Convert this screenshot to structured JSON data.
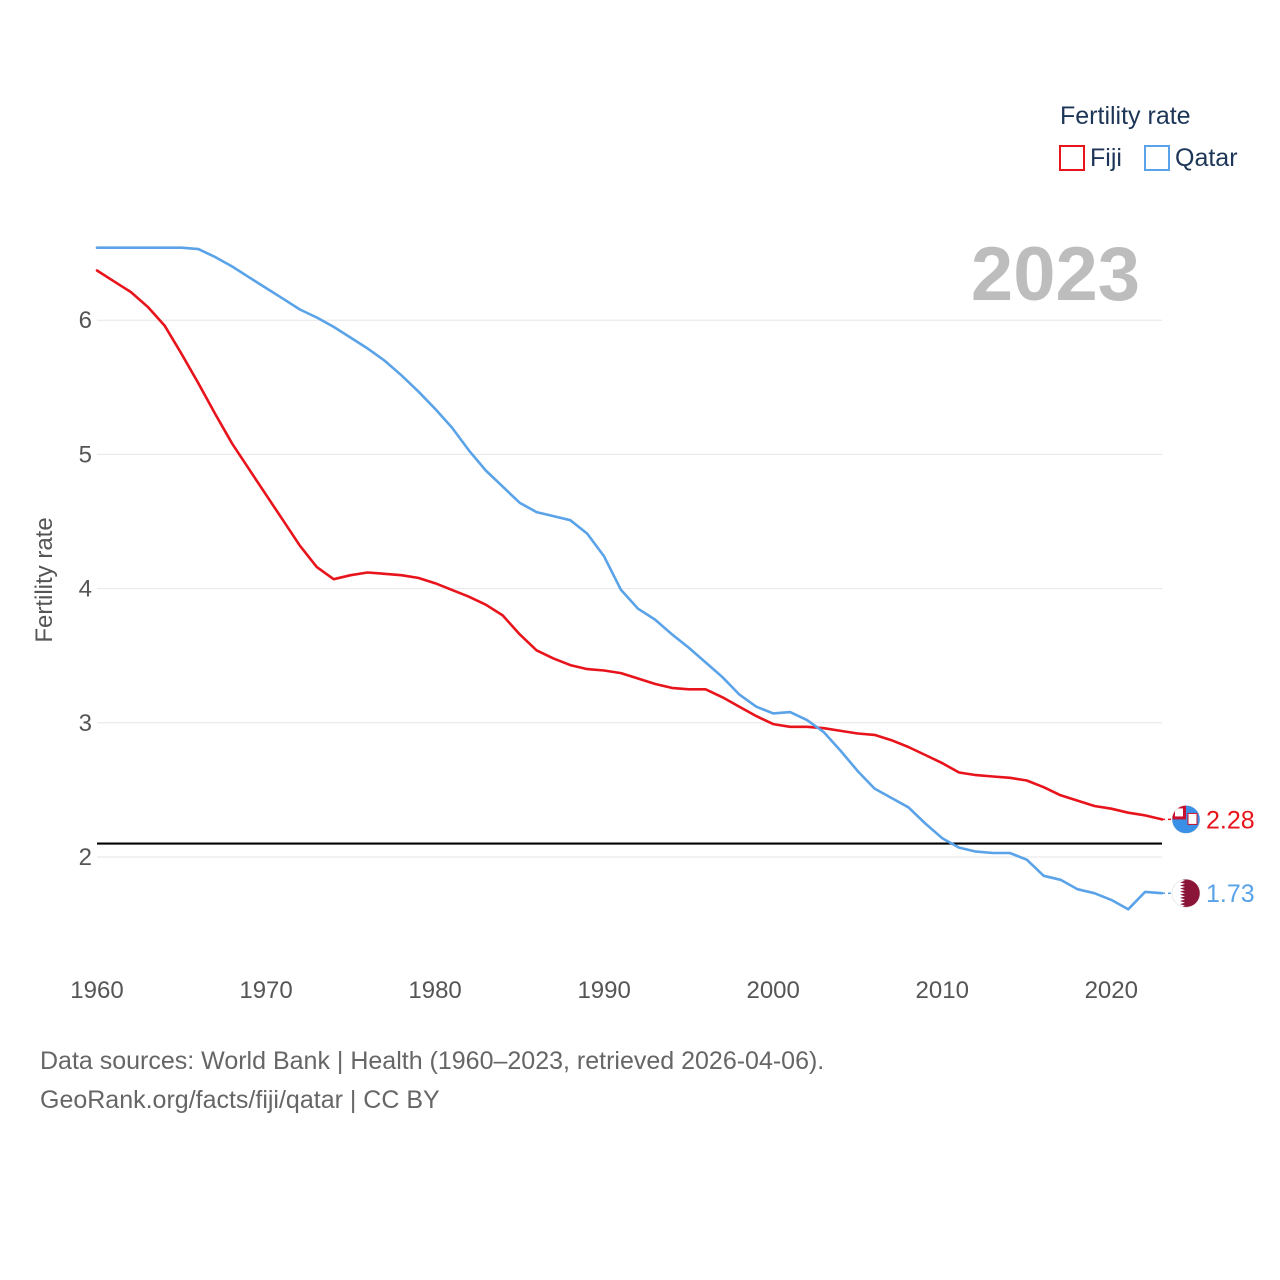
{
  "chart_data": {
    "type": "line",
    "current_year": "2023",
    "ylabel": "Fertility rate",
    "xlim": [
      1960,
      2023
    ],
    "ylim": [
      1.3,
      6.8
    ],
    "x_ticks": [
      "1960",
      "1970",
      "1980",
      "1990",
      "2000",
      "2010",
      "2020"
    ],
    "y_ticks": [
      "2",
      "3",
      "4",
      "5",
      "6"
    ],
    "reference_line": 2.1,
    "legend": {
      "title": "Fertility rate",
      "position": "top-right"
    },
    "series": [
      {
        "name": "Fiji",
        "color": "#e8141c",
        "end_label": "2.28",
        "flag": "fiji-flag",
        "values": [
          [
            1960,
            6.37
          ],
          [
            1961,
            6.29
          ],
          [
            1962,
            6.21
          ],
          [
            1963,
            6.1
          ],
          [
            1964,
            5.96
          ],
          [
            1965,
            5.75
          ],
          [
            1966,
            5.53
          ],
          [
            1967,
            5.3
          ],
          [
            1968,
            5.08
          ],
          [
            1969,
            4.89
          ],
          [
            1970,
            4.7
          ],
          [
            1971,
            4.51
          ],
          [
            1972,
            4.32
          ],
          [
            1973,
            4.16
          ],
          [
            1974,
            4.07
          ],
          [
            1975,
            4.1
          ],
          [
            1976,
            4.12
          ],
          [
            1977,
            4.11
          ],
          [
            1978,
            4.1
          ],
          [
            1979,
            4.08
          ],
          [
            1980,
            4.04
          ],
          [
            1981,
            3.99
          ],
          [
            1982,
            3.94
          ],
          [
            1983,
            3.88
          ],
          [
            1984,
            3.8
          ],
          [
            1985,
            3.66
          ],
          [
            1986,
            3.54
          ],
          [
            1987,
            3.48
          ],
          [
            1988,
            3.43
          ],
          [
            1989,
            3.4
          ],
          [
            1990,
            3.39
          ],
          [
            1991,
            3.37
          ],
          [
            1992,
            3.33
          ],
          [
            1993,
            3.29
          ],
          [
            1994,
            3.26
          ],
          [
            1995,
            3.25
          ],
          [
            1996,
            3.25
          ],
          [
            1997,
            3.19
          ],
          [
            1998,
            3.12
          ],
          [
            1999,
            3.05
          ],
          [
            2000,
            2.99
          ],
          [
            2001,
            2.97
          ],
          [
            2002,
            2.97
          ],
          [
            2003,
            2.96
          ],
          [
            2004,
            2.94
          ],
          [
            2005,
            2.92
          ],
          [
            2006,
            2.91
          ],
          [
            2007,
            2.87
          ],
          [
            2008,
            2.82
          ],
          [
            2009,
            2.76
          ],
          [
            2010,
            2.7
          ],
          [
            2011,
            2.63
          ],
          [
            2012,
            2.61
          ],
          [
            2013,
            2.6
          ],
          [
            2014,
            2.59
          ],
          [
            2015,
            2.57
          ],
          [
            2016,
            2.52
          ],
          [
            2017,
            2.46
          ],
          [
            2018,
            2.42
          ],
          [
            2019,
            2.38
          ],
          [
            2020,
            2.36
          ],
          [
            2021,
            2.33
          ],
          [
            2022,
            2.31
          ],
          [
            2023,
            2.28
          ]
        ]
      },
      {
        "name": "Qatar",
        "color": "#5aa3e8",
        "end_label": "1.73",
        "flag": "qatar-flag",
        "values": [
          [
            1960,
            6.54
          ],
          [
            1961,
            6.54
          ],
          [
            1962,
            6.54
          ],
          [
            1963,
            6.54
          ],
          [
            1964,
            6.54
          ],
          [
            1965,
            6.54
          ],
          [
            1966,
            6.53
          ],
          [
            1967,
            6.47
          ],
          [
            1968,
            6.4
          ],
          [
            1969,
            6.32
          ],
          [
            1970,
            6.24
          ],
          [
            1971,
            6.16
          ],
          [
            1972,
            6.08
          ],
          [
            1973,
            6.02
          ],
          [
            1974,
            5.95
          ],
          [
            1975,
            5.87
          ],
          [
            1976,
            5.79
          ],
          [
            1977,
            5.7
          ],
          [
            1978,
            5.59
          ],
          [
            1979,
            5.47
          ],
          [
            1980,
            5.34
          ],
          [
            1981,
            5.2
          ],
          [
            1982,
            5.03
          ],
          [
            1983,
            4.88
          ],
          [
            1984,
            4.76
          ],
          [
            1985,
            4.64
          ],
          [
            1986,
            4.57
          ],
          [
            1987,
            4.54
          ],
          [
            1988,
            4.51
          ],
          [
            1989,
            4.41
          ],
          [
            1990,
            4.24
          ],
          [
            1991,
            3.99
          ],
          [
            1992,
            3.85
          ],
          [
            1993,
            3.77
          ],
          [
            1994,
            3.66
          ],
          [
            1995,
            3.56
          ],
          [
            1996,
            3.45
          ],
          [
            1997,
            3.34
          ],
          [
            1998,
            3.21
          ],
          [
            1999,
            3.12
          ],
          [
            2000,
            3.07
          ],
          [
            2001,
            3.08
          ],
          [
            2002,
            3.02
          ],
          [
            2003,
            2.93
          ],
          [
            2004,
            2.79
          ],
          [
            2005,
            2.64
          ],
          [
            2006,
            2.51
          ],
          [
            2007,
            2.44
          ],
          [
            2008,
            2.37
          ],
          [
            2009,
            2.25
          ],
          [
            2010,
            2.14
          ],
          [
            2011,
            2.07
          ],
          [
            2012,
            2.04
          ],
          [
            2013,
            2.03
          ],
          [
            2014,
            2.03
          ],
          [
            2015,
            1.98
          ],
          [
            2016,
            1.86
          ],
          [
            2017,
            1.83
          ],
          [
            2018,
            1.76
          ],
          [
            2019,
            1.73
          ],
          [
            2020,
            1.68
          ],
          [
            2021,
            1.61
          ],
          [
            2022,
            1.74
          ],
          [
            2023,
            1.73
          ]
        ]
      }
    ]
  },
  "footer": {
    "line1": "Data sources: World Bank | Health (1960–2023, retrieved 2026-04-06).",
    "line2": "GeoRank.org/facts/fiji/qatar | CC BY"
  }
}
